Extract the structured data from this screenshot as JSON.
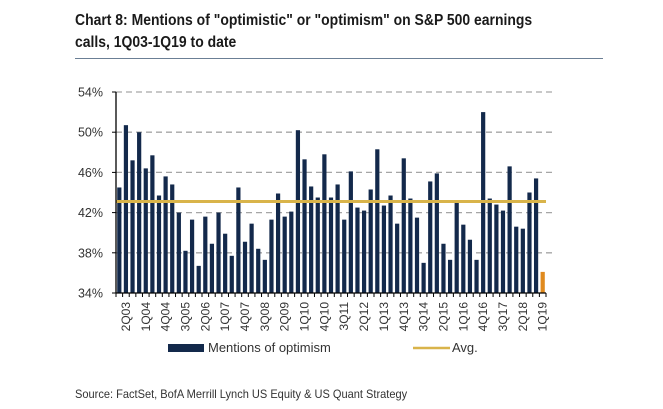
{
  "chart_data": {
    "type": "bar",
    "title": "Chart 8: Mentions of \"optimistic\" or \"optimism\" on S&P 500 earnings calls, 1Q03-1Q19 to date",
    "xlabel": "",
    "ylabel": "",
    "ylim": [
      34,
      54
    ],
    "yticks": [
      34,
      38,
      42,
      46,
      50,
      54
    ],
    "ytick_labels": [
      "34%",
      "38%",
      "42%",
      "46%",
      "50%",
      "54%"
    ],
    "grid": "horizontal-dashed",
    "legend_position": "bottom",
    "categories": [
      "1Q03",
      "2Q03",
      "3Q03",
      "4Q03",
      "1Q04",
      "2Q04",
      "3Q04",
      "4Q04",
      "1Q05",
      "2Q05",
      "3Q05",
      "4Q05",
      "1Q06",
      "2Q06",
      "3Q06",
      "4Q06",
      "1Q07",
      "2Q07",
      "3Q07",
      "4Q07",
      "1Q08",
      "2Q08",
      "3Q08",
      "4Q08",
      "1Q09",
      "2Q09",
      "3Q09",
      "4Q09",
      "1Q10",
      "2Q10",
      "3Q10",
      "4Q10",
      "1Q11",
      "2Q11",
      "3Q11",
      "4Q11",
      "1Q12",
      "2Q12",
      "3Q12",
      "4Q12",
      "1Q13",
      "2Q13",
      "3Q13",
      "4Q13",
      "1Q14",
      "2Q14",
      "3Q14",
      "4Q14",
      "1Q15",
      "2Q15",
      "3Q15",
      "4Q15",
      "1Q16",
      "2Q16",
      "3Q16",
      "4Q16",
      "1Q17",
      "2Q17",
      "3Q17",
      "4Q17",
      "1Q18",
      "2Q18",
      "3Q18",
      "4Q18",
      "1Q19"
    ],
    "xtick_labels": [
      "2Q03",
      "1Q04",
      "4Q04",
      "3Q05",
      "2Q06",
      "1Q07",
      "4Q07",
      "3Q08",
      "2Q09",
      "1Q10",
      "4Q10",
      "3Q11",
      "2Q12",
      "1Q13",
      "4Q13",
      "3Q14",
      "2Q15",
      "1Q16",
      "4Q16",
      "3Q17",
      "2Q18",
      "1Q19"
    ],
    "series": [
      {
        "name": "Mentions of optimism",
        "type": "bar",
        "color": "#13294b",
        "highlight_last_color": "#e08a1e",
        "values": [
          44.5,
          50.7,
          47.2,
          50.0,
          46.4,
          47.7,
          43.7,
          45.6,
          44.8,
          42.0,
          38.2,
          41.3,
          36.7,
          41.6,
          38.9,
          42.0,
          39.9,
          37.7,
          44.5,
          39.1,
          40.9,
          38.4,
          37.3,
          41.3,
          43.9,
          41.6,
          42.1,
          50.2,
          47.3,
          44.6,
          43.5,
          47.8,
          43.5,
          44.8,
          41.3,
          46.1,
          42.5,
          42.2,
          44.3,
          48.3,
          42.7,
          43.7,
          40.9,
          47.4,
          43.4,
          41.5,
          37.0,
          45.1,
          45.9,
          38.9,
          37.3,
          43.0,
          40.8,
          39.3,
          37.3,
          52.0,
          43.4,
          42.8,
          42.2,
          46.6,
          40.6,
          40.4,
          44.0,
          45.4,
          36.1
        ]
      },
      {
        "name": "Avg.",
        "type": "line",
        "color": "#d9b44a",
        "value": 43.1
      }
    ]
  },
  "header": {
    "title_line1": "Chart 8: Mentions of \"optimistic\" or \"optimism\" on S&P 500 earnings",
    "title_line2": "calls, 1Q03-1Q19 to date"
  },
  "legend": {
    "bars_label": "Mentions of optimism",
    "line_label": "Avg."
  },
  "footer": {
    "source": "Source: FactSet, BofA Merrill Lynch US Equity & US Quant Strategy"
  }
}
